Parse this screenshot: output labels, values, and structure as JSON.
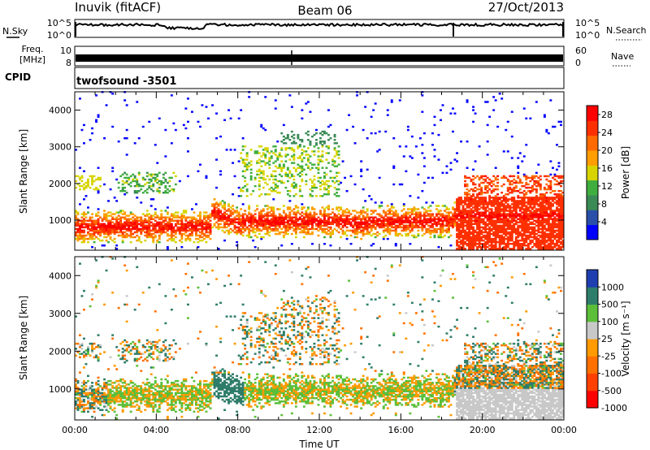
{
  "header": {
    "station": "Inuvik (fitACF)",
    "beam": "Beam 06",
    "date": "27/Oct/2013"
  },
  "status_panels": {
    "nsky_label": "N.Sky",
    "nsearch_label": "N.Search",
    "noise_ticks": [
      "10^5",
      "10^0"
    ],
    "freq_label_line1": "Freq.",
    "freq_label_line2": "[MHz]",
    "freq_ticks": [
      "10",
      "8"
    ],
    "nave_label": "Nave",
    "nave_ticks": [
      "60",
      "0"
    ],
    "cpid_label": "CPID",
    "cpid_value": "twofsound -3501"
  },
  "colors": {
    "power_scale": [
      "#0000ff",
      "#2a4fa8",
      "#3a8a55",
      "#3fae3f",
      "#d7d400",
      "#ff9e00",
      "#ff6a00",
      "#ff3000",
      "#ff0000"
    ],
    "velocity_scale": [
      "#1f3fb0",
      "#2e7d6a",
      "#5bbf3a",
      "#c8c8c8",
      "#ff9a00",
      "#ff7000",
      "#ff4000",
      "#ff0000"
    ]
  },
  "chart_data": [
    {
      "type": "heatmap",
      "title": "",
      "xlabel": "",
      "ylabel": "Slant Range [km]",
      "x_ticks": [
        "00:00",
        "04:00",
        "08:00",
        "12:00",
        "16:00",
        "20:00",
        "00:00"
      ],
      "x_range_hours": [
        0,
        24
      ],
      "ylim": [
        180,
        4500
      ],
      "y_ticks": [
        1000,
        2000,
        3000,
        4000
      ],
      "colorbar_label": "Power [dB]",
      "colorbar_ticks": [
        4,
        8,
        12,
        16,
        20,
        24,
        28
      ],
      "colorbar_range": [
        0,
        30
      ]
    },
    {
      "type": "heatmap",
      "title": "",
      "xlabel": "Time UT",
      "ylabel": "Slant Range [km]",
      "x_ticks": [
        "00:00",
        "04:00",
        "08:00",
        "12:00",
        "16:00",
        "20:00",
        "00:00"
      ],
      "x_range_hours": [
        0,
        24
      ],
      "ylim": [
        180,
        4500
      ],
      "y_ticks": [
        1000,
        2000,
        3000,
        4000
      ],
      "colorbar_label": "Velocity [m s⁻¹]",
      "colorbar_ticks": [
        "1000",
        "500",
        "100",
        "25",
        "-25",
        "-100",
        "-500",
        "-1000"
      ]
    }
  ]
}
